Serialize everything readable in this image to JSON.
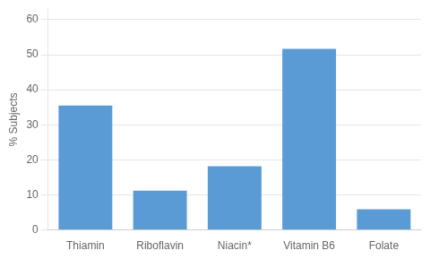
{
  "chart_data": {
    "type": "bar",
    "categories": [
      "Thiamin",
      "Riboflavin",
      "Niacin*",
      "Vitamin B6",
      "Folate"
    ],
    "values": [
      35.5,
      11.2,
      18.2,
      51.7,
      5.9
    ],
    "color": "#5b9bd5",
    "ylabel": "% Subjects",
    "ylim": [
      0,
      63
    ],
    "yticks": [
      0,
      10,
      20,
      30,
      40,
      50,
      60
    ],
    "grid": true
  }
}
